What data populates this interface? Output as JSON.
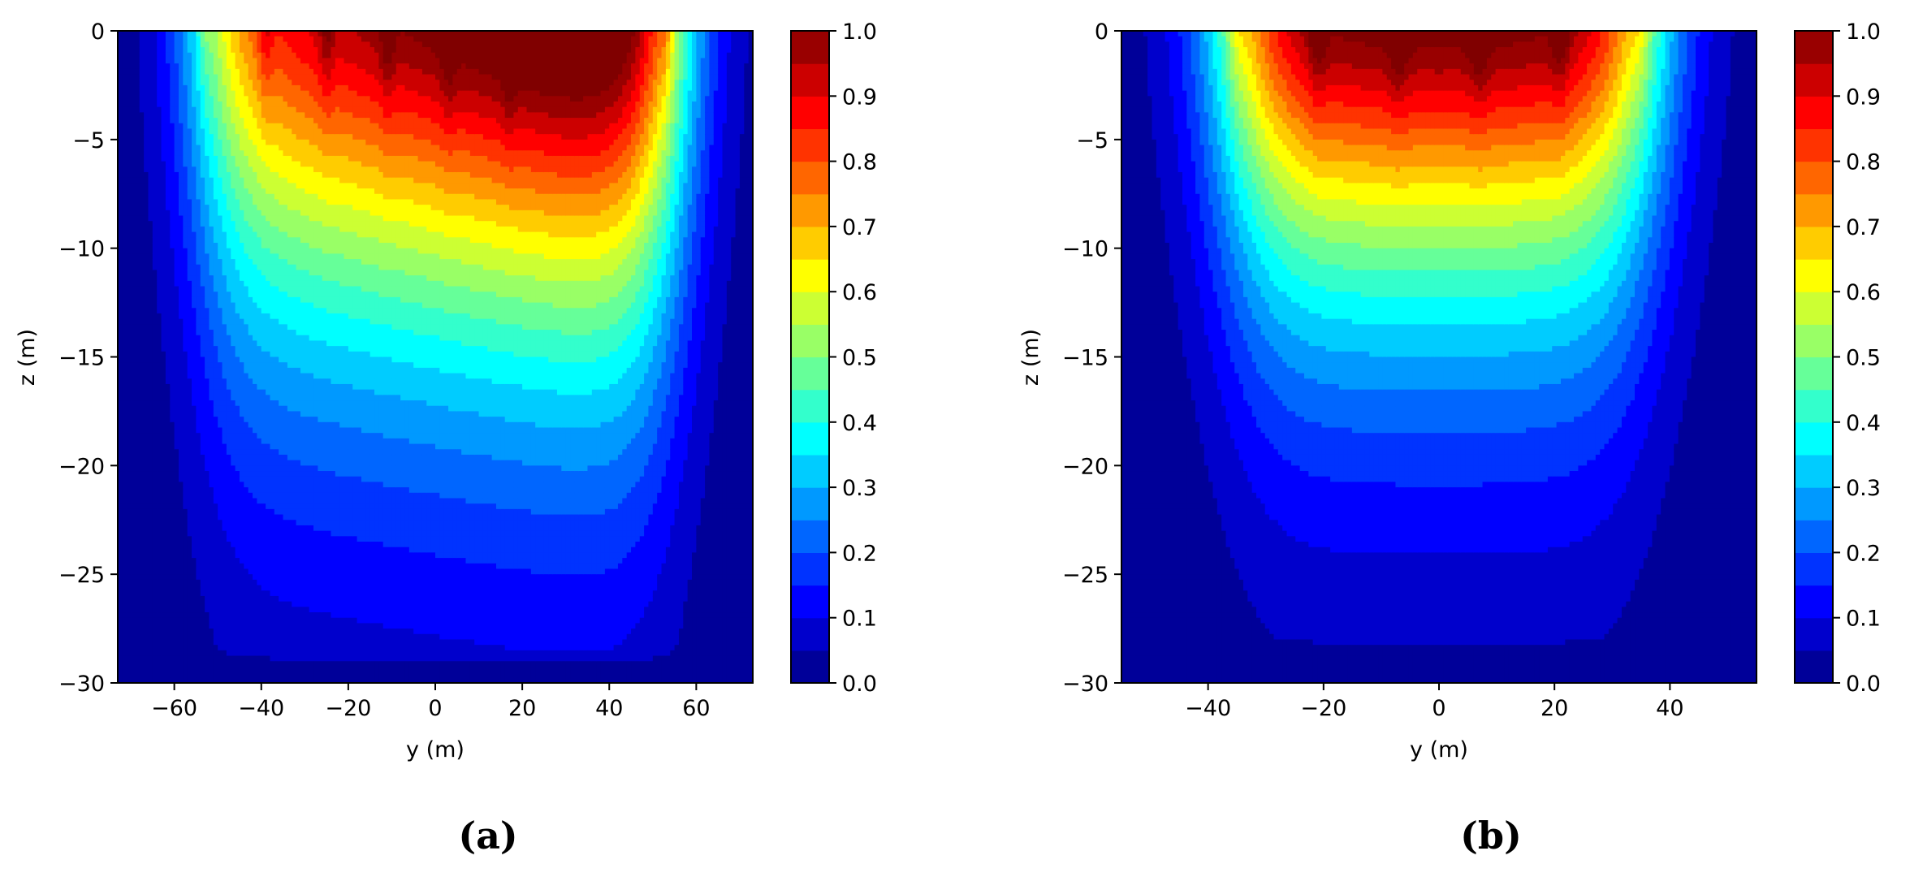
{
  "chart_data": [
    {
      "type": "heatmap",
      "panel": "(a)",
      "xlabel": "y (m)",
      "ylabel": "z (m)",
      "xlim": [
        -73,
        73
      ],
      "ylim": [
        -30,
        0
      ],
      "xticks": [
        -60,
        -40,
        -20,
        0,
        20,
        40,
        60
      ],
      "yticks": [
        0,
        -5,
        -10,
        -15,
        -20,
        -25,
        -30
      ],
      "colorbar": {
        "range": [
          0.0,
          1.0
        ],
        "ticks": [
          0.0,
          0.1,
          0.2,
          0.3,
          0.4,
          0.5,
          0.6,
          0.7,
          0.8,
          0.9,
          1.0
        ],
        "colormap": "jet"
      },
      "field": {
        "edge_half_width": 54,
        "side_decay": 5.5,
        "trench_depth": 4,
        "trench_positions": [
          -53,
          -39,
          -25,
          -11,
          3,
          17,
          53
        ],
        "asymmetry": 0.004,
        "depth_scale": 15,
        "deep_limit": 28.5
      }
    },
    {
      "type": "heatmap",
      "panel": "(b)",
      "xlabel": "y (m)",
      "ylabel": "z (m)",
      "xlim": [
        -55,
        55
      ],
      "ylim": [
        -30,
        0
      ],
      "xticks": [
        -40,
        -20,
        0,
        20,
        40
      ],
      "yticks": [
        0,
        -5,
        -10,
        -15,
        -20,
        -25,
        -30
      ],
      "colorbar": {
        "range": [
          0.0,
          1.0
        ],
        "ticks": [
          0.0,
          0.1,
          0.2,
          0.3,
          0.4,
          0.5,
          0.6,
          0.7,
          0.8,
          0.9,
          1.0
        ],
        "colormap": "jet"
      },
      "field": {
        "edge_half_width": 36,
        "side_decay": 5.0,
        "trench_depth": 4,
        "trench_positions": [
          -35,
          -21,
          -7,
          7,
          21,
          35
        ],
        "asymmetry": 0,
        "depth_scale": 13,
        "deep_limit": 28
      }
    }
  ]
}
